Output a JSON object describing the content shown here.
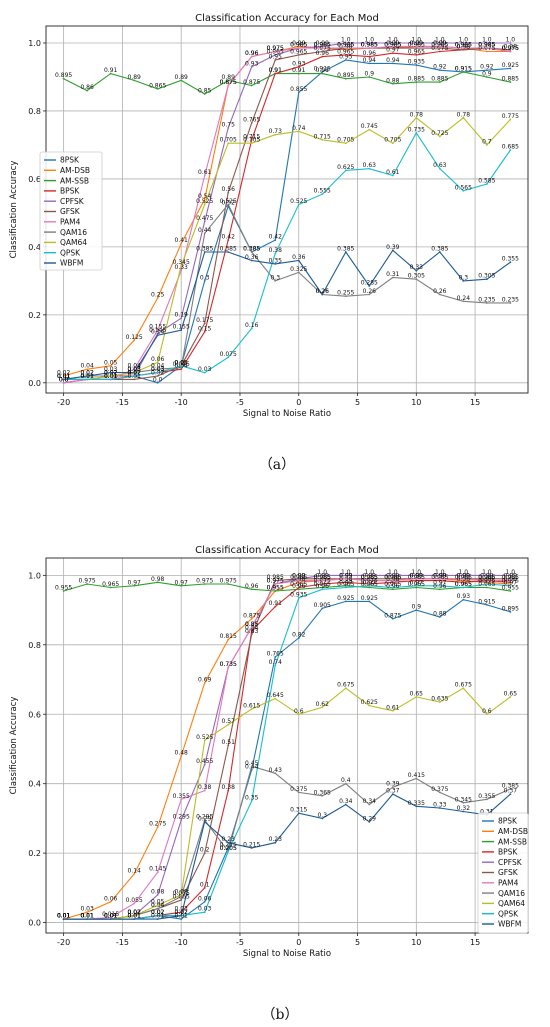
{
  "captions": [
    "（a）",
    "（b）"
  ],
  "chart_data": [
    {
      "type": "line",
      "title": "Classification Accuracy for Each Mod",
      "xlabel": "Signal to Noise Ratio",
      "ylabel": "Classification Accuracy",
      "xlim": [
        -21.5,
        19.5
      ],
      "ylim": [
        -0.03,
        1.05
      ],
      "xticks": [
        -20,
        -15,
        -10,
        -5,
        0,
        5,
        10,
        15
      ],
      "yticks": [
        0.0,
        0.2,
        0.4,
        0.6,
        0.8,
        1.0
      ],
      "grid": true,
      "legend_position": "middle-left",
      "x": [
        -20,
        -18,
        -16,
        -14,
        -12,
        -10,
        -8,
        -6,
        -4,
        -2,
        0,
        2,
        4,
        6,
        8,
        10,
        12,
        14,
        16,
        18
      ],
      "series": [
        {
          "name": "8PSK",
          "color": "#1f77b4",
          "values": [
            0.01,
            0.01,
            0.01,
            0.02,
            0.0,
            0.05,
            0.3,
            0.52,
            0.385,
            0.42,
            0.855,
            0.915,
            0.95,
            0.94,
            0.94,
            0.935,
            0.92,
            0.915,
            0.92,
            0.925
          ]
        },
        {
          "name": "AM-DSB",
          "color": "#ff7f0e",
          "values": [
            0.02,
            0.04,
            0.05,
            0.125,
            0.25,
            0.41,
            0.54,
            0.875,
            0.96,
            0.975,
            0.99,
            0.985,
            0.98,
            0.985,
            0.985,
            0.99,
            0.99,
            0.985,
            0.975,
            0.975
          ]
        },
        {
          "name": "AM-SSB",
          "color": "#2ca02c",
          "values": [
            0.895,
            0.86,
            0.91,
            0.89,
            0.865,
            0.89,
            0.85,
            0.89,
            0.875,
            0.91,
            0.91,
            0.91,
            0.895,
            0.9,
            0.88,
            0.885,
            0.885,
            0.915,
            0.9,
            0.885
          ]
        },
        {
          "name": "BPSK",
          "color": "#d62728",
          "values": [
            0.0,
            0.01,
            0.02,
            0.02,
            0.03,
            0.04,
            0.15,
            0.42,
            0.715,
            0.91,
            0.93,
            0.96,
            0.965,
            0.96,
            0.97,
            0.965,
            0.975,
            0.98,
            0.985,
            0.975
          ]
        },
        {
          "name": "CPFSK",
          "color": "#9467bd",
          "values": [
            0.0,
            0.01,
            0.01,
            0.02,
            0.145,
            0.19,
            0.475,
            0.75,
            0.93,
            0.965,
            0.985,
            0.99,
            1.0,
            1.0,
            1.0,
            1.0,
            1.0,
            1.0,
            1.0,
            1.0
          ]
        },
        {
          "name": "GFSK",
          "color": "#8c564b",
          "values": [
            0.01,
            0.01,
            0.01,
            0.01,
            0.02,
            0.05,
            0.175,
            0.56,
            0.765,
            0.95,
            0.965,
            0.975,
            0.985,
            0.985,
            0.985,
            0.985,
            0.985,
            0.98,
            0.985,
            0.98
          ]
        },
        {
          "name": "PAM4",
          "color": "#e377c2",
          "values": [
            0.0,
            0.01,
            0.01,
            0.04,
            0.155,
            0.33,
            0.61,
            0.875,
            0.96,
            0.975,
            0.985,
            0.985,
            0.985,
            0.985,
            0.99,
            0.99,
            0.99,
            0.985,
            0.985,
            0.975
          ]
        },
        {
          "name": "QAM16",
          "color": "#7f7f7f",
          "values": [
            0.01,
            0.02,
            0.02,
            0.03,
            0.04,
            0.045,
            0.44,
            0.525,
            0.385,
            0.3,
            0.325,
            0.26,
            0.255,
            0.26,
            0.31,
            0.305,
            0.26,
            0.24,
            0.235,
            0.235
          ]
        },
        {
          "name": "QAM64",
          "color": "#bcbd22",
          "values": [
            0.01,
            0.01,
            0.02,
            0.03,
            0.06,
            0.345,
            0.525,
            0.705,
            0.705,
            0.73,
            0.74,
            0.715,
            0.705,
            0.745,
            0.705,
            0.78,
            0.725,
            0.78,
            0.7,
            0.775
          ]
        },
        {
          "name": "QPSK",
          "color": "#17becf",
          "values": [
            0.01,
            0.01,
            0.01,
            0.02,
            0.03,
            0.05,
            0.03,
            0.075,
            0.16,
            0.38,
            0.525,
            0.555,
            0.625,
            0.63,
            0.61,
            0.735,
            0.63,
            0.565,
            0.585,
            0.685
          ]
        },
        {
          "name": "WBFM",
          "color": "#1a5a96",
          "values": [
            0.01,
            0.02,
            0.03,
            0.03,
            0.14,
            0.155,
            0.385,
            0.385,
            0.36,
            0.35,
            0.36,
            0.26,
            0.385,
            0.285,
            0.39,
            0.33,
            0.385,
            0.3,
            0.305,
            0.355
          ]
        }
      ]
    },
    {
      "type": "line",
      "title": "Classification Accuracy for Each Mod",
      "xlabel": "Signal to Noise Ratio",
      "ylabel": "Classification Accuracy",
      "xlim": [
        -21.5,
        19.5
      ],
      "ylim": [
        -0.03,
        1.05
      ],
      "xticks": [
        -20,
        -15,
        -10,
        -5,
        0,
        5,
        10,
        15
      ],
      "yticks": [
        0.0,
        0.2,
        0.4,
        0.6,
        0.8,
        1.0
      ],
      "grid": true,
      "legend_position": "bottom-right",
      "x": [
        -20,
        -18,
        -16,
        -14,
        -12,
        -10,
        -8,
        -6,
        -4,
        -2,
        0,
        2,
        4,
        6,
        8,
        10,
        12,
        14,
        16,
        18
      ],
      "series": [
        {
          "name": "8PSK",
          "color": "#1f77b4",
          "values": [
            0.01,
            0.01,
            0.01,
            0.01,
            0.02,
            0.01,
            0.06,
            0.215,
            0.44,
            0.765,
            0.82,
            0.905,
            0.925,
            0.925,
            0.875,
            0.9,
            0.88,
            0.93,
            0.915,
            0.895
          ]
        },
        {
          "name": "AM-DSB",
          "color": "#ff7f0e",
          "values": [
            0.01,
            0.03,
            0.06,
            0.14,
            0.275,
            0.48,
            0.69,
            0.815,
            0.875,
            0.955,
            0.98,
            0.985,
            0.99,
            0.985,
            0.985,
            0.99,
            0.99,
            0.985,
            0.98,
            0.975
          ]
        },
        {
          "name": "AM-SSB",
          "color": "#2ca02c",
          "values": [
            0.955,
            0.975,
            0.965,
            0.97,
            0.98,
            0.97,
            0.975,
            0.975,
            0.96,
            0.955,
            0.96,
            0.965,
            0.97,
            0.965,
            0.96,
            0.965,
            0.96,
            0.965,
            0.965,
            0.955
          ]
        },
        {
          "name": "BPSK",
          "color": "#d62728",
          "values": [
            0.01,
            0.01,
            0.01,
            0.01,
            0.02,
            0.03,
            0.1,
            0.38,
            0.84,
            0.91,
            0.965,
            0.975,
            0.98,
            0.975,
            0.98,
            0.985,
            0.985,
            0.98,
            0.985,
            0.98
          ]
        },
        {
          "name": "CPFSK",
          "color": "#9467bd",
          "values": [
            0.01,
            0.01,
            0.01,
            0.02,
            0.08,
            0.295,
            0.455,
            0.735,
            0.85,
            0.975,
            0.99,
            1.0,
            1.0,
            1.0,
            1.0,
            1.0,
            1.0,
            1.0,
            1.0,
            1.0
          ]
        },
        {
          "name": "GFSK",
          "color": "#8c564b",
          "values": [
            0.01,
            0.01,
            0.01,
            0.02,
            0.04,
            0.065,
            0.2,
            0.51,
            0.83,
            0.985,
            0.99,
            0.99,
            0.99,
            0.99,
            0.99,
            0.99,
            0.99,
            0.99,
            0.99,
            0.99
          ]
        },
        {
          "name": "PAM4",
          "color": "#e377c2",
          "values": [
            0.01,
            0.01,
            0.015,
            0.055,
            0.145,
            0.355,
            0.38,
            0.735,
            0.85,
            0.975,
            0.985,
            0.985,
            0.99,
            0.985,
            0.985,
            0.99,
            0.99,
            0.99,
            0.985,
            0.985
          ]
        },
        {
          "name": "QAM16",
          "color": "#7f7f7f",
          "values": [
            0.01,
            0.01,
            0.01,
            0.02,
            0.04,
            0.075,
            0.295,
            0.205,
            0.45,
            0.43,
            0.375,
            0.365,
            0.4,
            0.34,
            0.39,
            0.415,
            0.375,
            0.345,
            0.355,
            0.385
          ]
        },
        {
          "name": "QAM64",
          "color": "#bcbd22",
          "values": [
            0.01,
            0.01,
            0.01,
            0.02,
            0.05,
            0.08,
            0.525,
            0.57,
            0.615,
            0.645,
            0.6,
            0.62,
            0.675,
            0.625,
            0.61,
            0.65,
            0.635,
            0.675,
            0.6,
            0.65
          ]
        },
        {
          "name": "QPSK",
          "color": "#17becf",
          "values": [
            0.01,
            0.01,
            0.01,
            0.01,
            0.02,
            0.02,
            0.03,
            0.205,
            0.35,
            0.74,
            0.935,
            0.96,
            0.965,
            0.97,
            0.965,
            0.97,
            0.97,
            0.965,
            0.975,
            0.97
          ]
        },
        {
          "name": "WBFM",
          "color": "#1a5a96",
          "values": [
            0.01,
            0.01,
            0.01,
            0.01,
            0.01,
            0.02,
            0.29,
            0.23,
            0.215,
            0.23,
            0.315,
            0.3,
            0.34,
            0.29,
            0.37,
            0.335,
            0.33,
            0.32,
            0.31,
            0.37
          ]
        }
      ]
    }
  ]
}
